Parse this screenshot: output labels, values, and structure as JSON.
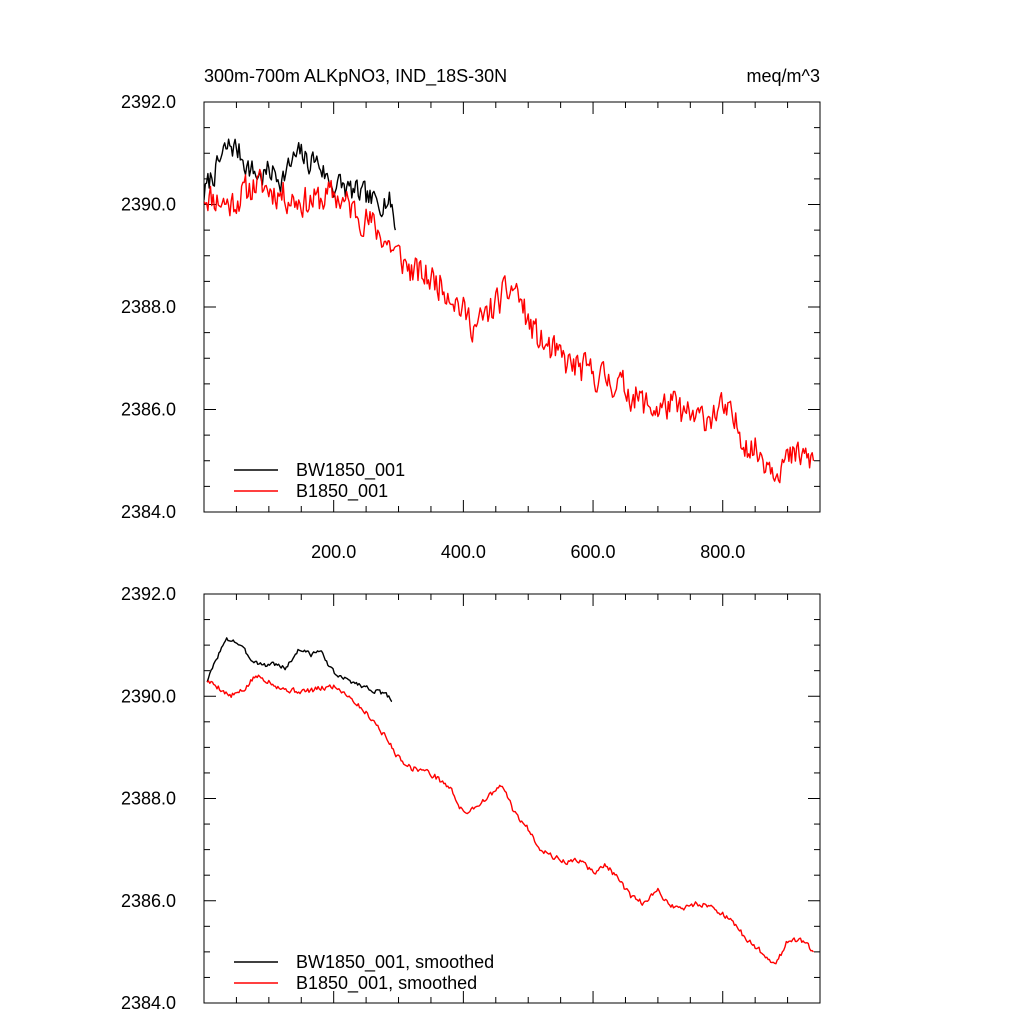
{
  "figure": {
    "title_left": "300m-700m ALKpNO3, IND_18S-30N",
    "title_right": "meq/m^3"
  },
  "chart_data": [
    {
      "type": "line",
      "title": "300m-700m ALKpNO3, IND_18S-30N",
      "units": "meq/m^3",
      "xlim": [
        0,
        950
      ],
      "ylim": [
        2384,
        2392
      ],
      "x_ticks": [
        200,
        400,
        600,
        800
      ],
      "x_tick_labels": [
        "200.0",
        "400.0",
        "600.0",
        "800.0"
      ],
      "y_ticks": [
        2384,
        2386,
        2388,
        2390,
        2392
      ],
      "y_tick_labels": [
        "2384.0",
        "2386.0",
        "2388.0",
        "2390.0",
        "2392.0"
      ],
      "legend_position": "bottom-left",
      "series": [
        {
          "name": "BW1850_001",
          "color": "#000000",
          "noise": 0.22,
          "seed": 7,
          "x": [
            0,
            10,
            20,
            30,
            40,
            50,
            60,
            70,
            80,
            90,
            100,
            110,
            120,
            130,
            140,
            150,
            160,
            170,
            180,
            190,
            200,
            210,
            220,
            230,
            240,
            250,
            260,
            270,
            280,
            290,
            295
          ],
          "y": [
            2390.2,
            2390.5,
            2390.7,
            2391.0,
            2391.15,
            2391.1,
            2390.9,
            2390.7,
            2390.6,
            2390.55,
            2390.65,
            2390.6,
            2390.5,
            2390.7,
            2390.9,
            2391.0,
            2390.8,
            2390.9,
            2390.75,
            2390.5,
            2390.35,
            2390.4,
            2390.3,
            2390.25,
            2390.2,
            2390.15,
            2390.05,
            2390.05,
            2390.1,
            2390.0,
            2389.5
          ]
        },
        {
          "name": "B1850_001",
          "color": "#ff0000",
          "noise": 0.28,
          "seed": 11,
          "x": [
            0,
            20,
            40,
            60,
            80,
            100,
            120,
            140,
            160,
            180,
            200,
            220,
            240,
            260,
            280,
            300,
            320,
            340,
            360,
            380,
            400,
            420,
            440,
            460,
            480,
            500,
            520,
            540,
            560,
            580,
            600,
            620,
            640,
            660,
            680,
            700,
            720,
            740,
            760,
            780,
            800,
            820,
            840,
            860,
            880,
            900,
            920,
            940
          ],
          "y": [
            2390.2,
            2390.1,
            2390.0,
            2390.2,
            2390.4,
            2390.3,
            2390.2,
            2390.1,
            2390.05,
            2390.1,
            2390.2,
            2390.0,
            2389.8,
            2389.6,
            2389.3,
            2389.0,
            2388.7,
            2388.6,
            2388.5,
            2388.3,
            2387.9,
            2387.6,
            2387.9,
            2388.2,
            2388.4,
            2387.7,
            2387.3,
            2387.1,
            2386.9,
            2386.8,
            2386.7,
            2386.6,
            2386.5,
            2386.3,
            2386.1,
            2386.0,
            2386.1,
            2385.9,
            2385.8,
            2385.9,
            2386.0,
            2385.7,
            2385.3,
            2385.1,
            2384.9,
            2385.0,
            2385.1,
            2385.0
          ]
        }
      ]
    },
    {
      "type": "line",
      "title": "",
      "units": "",
      "xlim": [
        0,
        950
      ],
      "ylim": [
        2384,
        2392
      ],
      "y_ticks": [
        2384,
        2386,
        2388,
        2390,
        2392
      ],
      "y_tick_labels": [
        "2384.0",
        "2386.0",
        "2388.0",
        "2390.0",
        "2392.0"
      ],
      "legend_position": "bottom-left",
      "series": [
        {
          "name": "BW1850_001, smoothed",
          "color": "#000000",
          "noise": 0.04,
          "seed": 3,
          "x": [
            5,
            15,
            25,
            35,
            45,
            55,
            65,
            75,
            85,
            95,
            105,
            115,
            125,
            135,
            145,
            155,
            165,
            175,
            185,
            195,
            205,
            215,
            225,
            235,
            245,
            255,
            265,
            275,
            285,
            290
          ],
          "y": [
            2390.3,
            2390.6,
            2390.9,
            2391.1,
            2391.1,
            2391.0,
            2390.85,
            2390.7,
            2390.65,
            2390.6,
            2390.65,
            2390.6,
            2390.55,
            2390.7,
            2390.9,
            2390.9,
            2390.8,
            2390.9,
            2390.8,
            2390.55,
            2390.4,
            2390.35,
            2390.3,
            2390.25,
            2390.2,
            2390.15,
            2390.1,
            2390.05,
            2390.0,
            2389.9
          ]
        },
        {
          "name": "B1850_001, smoothed",
          "color": "#ff0000",
          "noise": 0.05,
          "seed": 5,
          "x": [
            5,
            20,
            40,
            60,
            80,
            100,
            120,
            140,
            160,
            180,
            200,
            220,
            240,
            260,
            280,
            300,
            320,
            340,
            360,
            380,
            400,
            420,
            440,
            460,
            480,
            500,
            520,
            540,
            560,
            580,
            600,
            620,
            640,
            660,
            680,
            700,
            720,
            740,
            760,
            780,
            800,
            820,
            840,
            860,
            880,
            900,
            920,
            940
          ],
          "y": [
            2390.3,
            2390.2,
            2390.0,
            2390.1,
            2390.4,
            2390.3,
            2390.15,
            2390.1,
            2390.1,
            2390.15,
            2390.2,
            2390.05,
            2389.8,
            2389.55,
            2389.2,
            2388.8,
            2388.6,
            2388.55,
            2388.4,
            2388.2,
            2387.7,
            2387.85,
            2388.05,
            2388.25,
            2387.7,
            2387.4,
            2387.0,
            2386.85,
            2386.75,
            2386.8,
            2386.55,
            2386.7,
            2386.4,
            2386.05,
            2385.95,
            2386.2,
            2385.9,
            2385.85,
            2385.95,
            2385.9,
            2385.75,
            2385.5,
            2385.2,
            2385.0,
            2384.75,
            2385.2,
            2385.25,
            2385.0
          ]
        }
      ]
    }
  ]
}
